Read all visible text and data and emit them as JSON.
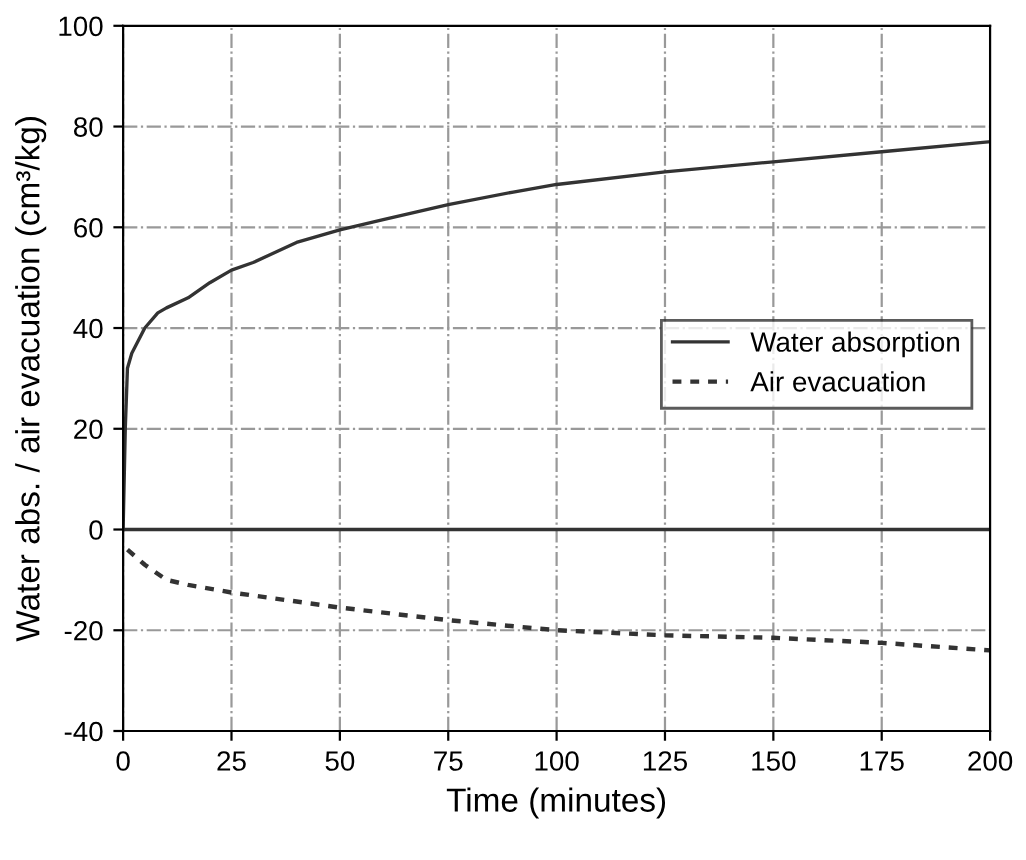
{
  "chart_data": {
    "type": "line",
    "xlabel": "Time (minutes)",
    "ylabel": "Water abs. / air evacuation (cm³/kg)",
    "xlim": [
      0,
      200
    ],
    "xticks": [
      0,
      25,
      50,
      75,
      100,
      125,
      150,
      175,
      200
    ],
    "ylim": [
      -40,
      100
    ],
    "yticks": [
      -40,
      -20,
      0,
      20,
      40,
      60,
      80,
      100
    ],
    "grid": true,
    "legend": "right",
    "marker": "none",
    "ref_lines": [
      {
        "axis": "y",
        "value": 0,
        "color": "#333333",
        "line_style": "solid"
      }
    ],
    "series": [
      {
        "name": "Water absorption",
        "color": "#333333",
        "line_style": "solid",
        "x": [
          0,
          0.5,
          1,
          2,
          5,
          8,
          10,
          15,
          20,
          25,
          30,
          40,
          50,
          60,
          75,
          90,
          100,
          125,
          150,
          175,
          200
        ],
        "values": [
          0,
          20,
          32,
          35,
          40,
          43,
          44,
          46,
          49,
          51.5,
          53,
          57,
          59.5,
          61.5,
          64.5,
          67,
          68.5,
          71,
          73,
          75,
          77
        ]
      },
      {
        "name": "Air evacuation",
        "color": "#333333",
        "line_style": "dotted",
        "x": [
          1,
          5,
          10,
          15,
          25,
          50,
          75,
          100,
          125,
          150,
          175,
          200
        ],
        "values": [
          -4,
          -7,
          -10,
          -11,
          -12.5,
          -15.5,
          -18,
          -20,
          -21,
          -21.5,
          -22.5,
          -24
        ]
      }
    ]
  }
}
